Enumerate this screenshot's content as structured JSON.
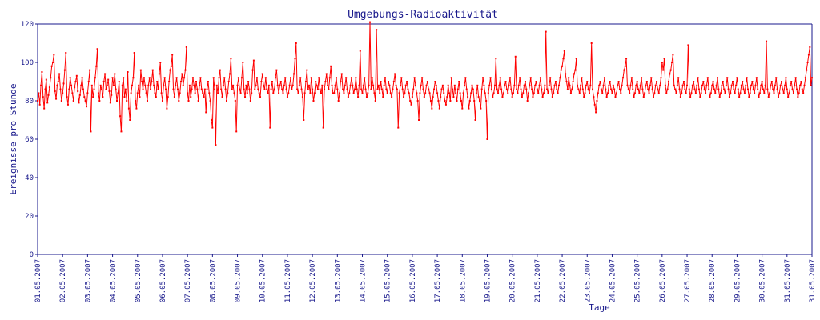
{
  "chart_data": {
    "type": "line",
    "title": "Umgebungs-Radioaktivität",
    "xlabel": "Tage",
    "ylabel": "Ereignisse pro Stunde",
    "ylim": [
      0,
      120
    ],
    "yticks": [
      0,
      20,
      40,
      60,
      80,
      100,
      120
    ],
    "xticks": [
      "01.05.2007",
      "02.05.2007",
      "03.05.2007",
      "04.05.2007",
      "05.05.2007",
      "06.05.2007",
      "07.05.2007",
      "08.05.2007",
      "09.05.2007",
      "10.05.2007",
      "11.05.2007",
      "12.05.2007",
      "13.05.2007",
      "14.05.2007",
      "15.05.2007",
      "16.05.2007",
      "17.05.2007",
      "18.05.2007",
      "19.05.2007",
      "20.05.2007",
      "21.05.2007",
      "22.05.2007",
      "23.05.2007",
      "24.05.2007",
      "25.05.2007",
      "26.05.2007",
      "27.05.2007",
      "28.05.2007",
      "29.05.2007",
      "30.05.2007",
      "31.05.2007",
      "31.05.2007"
    ],
    "grid": false,
    "color": "#ff0000",
    "series": [
      {
        "values": [
          80,
          84,
          78,
          88,
          95,
          82,
          76,
          86,
          91,
          79,
          83,
          87,
          92,
          98,
          100,
          104,
          85,
          81,
          88,
          90,
          94,
          86,
          80,
          84,
          89,
          96,
          105,
          82,
          78,
          86,
          92,
          88,
          84,
          80,
          87,
          90,
          93,
          85,
          79,
          83,
          88,
          92,
          86,
          82,
          80,
          77,
          84,
          90,
          96,
          64,
          88,
          82,
          86,
          92,
          98,
          107,
          84,
          80,
          88,
          86,
          82,
          90,
          94,
          86,
          88,
          91,
          85,
          79,
          83,
          92,
          88,
          94,
          86,
          80,
          84,
          90,
          72,
          64,
          88,
          92,
          82,
          86,
          80,
          95,
          76,
          70,
          84,
          88,
          92,
          105,
          80,
          76,
          84,
          88,
          82,
          96,
          90,
          86,
          92,
          88,
          84,
          80,
          88,
          92,
          86,
          90,
          96,
          88,
          84,
          82,
          90,
          86,
          94,
          100,
          84,
          80,
          88,
          92,
          86,
          76,
          82,
          90,
          96,
          98,
          104,
          86,
          82,
          88,
          92,
          86,
          80,
          84,
          90,
          94,
          88,
          92,
          96,
          108,
          84,
          80,
          88,
          82,
          86,
          92,
          88,
          84,
          90,
          86,
          80,
          88,
          92,
          86,
          84,
          82,
          86,
          74,
          86,
          90,
          84,
          80,
          70,
          66,
          92,
          86,
          57,
          88,
          84,
          92,
          96,
          86,
          82,
          88,
          92,
          86,
          80,
          84,
          90,
          94,
          102,
          86,
          88,
          84,
          80,
          64,
          88,
          92,
          86,
          84,
          92,
          100,
          86,
          82,
          88,
          84,
          90,
          86,
          80,
          84,
          96,
          101,
          86,
          88,
          92,
          86,
          84,
          82,
          90,
          94,
          88,
          86,
          92,
          86,
          84,
          88,
          66,
          86,
          90,
          84,
          86,
          92,
          96,
          88,
          84,
          88,
          90,
          86,
          84,
          88,
          92,
          86,
          82,
          84,
          88,
          92,
          86,
          88,
          94,
          102,
          110,
          86,
          84,
          88,
          92,
          86,
          82,
          70,
          84,
          90,
          96,
          86,
          88,
          84,
          92,
          86,
          80,
          84,
          90,
          88,
          86,
          92,
          86,
          84,
          88,
          66,
          86,
          90,
          94,
          88,
          86,
          92,
          98,
          88,
          84,
          84,
          88,
          92,
          86,
          80,
          84,
          90,
          94,
          86,
          84,
          88,
          92,
          86,
          82,
          84,
          88,
          92,
          88,
          84,
          86,
          92,
          86,
          82,
          88,
          106,
          86,
          84,
          88,
          92,
          86,
          82,
          84,
          88,
          121,
          86,
          92,
          88,
          84,
          80,
          117,
          86,
          88,
          84,
          90,
          86,
          82,
          88,
          92,
          86,
          84,
          90,
          88,
          84,
          82,
          86,
          90,
          94,
          88,
          86,
          66,
          84,
          88,
          92,
          86,
          82,
          84,
          88,
          90,
          86,
          84,
          80,
          78,
          82,
          86,
          92,
          88,
          84,
          80,
          70,
          84,
          88,
          92,
          86,
          82,
          84,
          88,
          90,
          86,
          84,
          80,
          76,
          82,
          86,
          90,
          88,
          84,
          80,
          76,
          82,
          86,
          88,
          84,
          80,
          78,
          82,
          88,
          84,
          80,
          92,
          86,
          82,
          88,
          84,
          80,
          86,
          90,
          84,
          80,
          76,
          84,
          88,
          92,
          86,
          82,
          76,
          80,
          84,
          88,
          86,
          80,
          70,
          84,
          88,
          82,
          80,
          76,
          86,
          92,
          88,
          84,
          80,
          60,
          84,
          88,
          92,
          86,
          82,
          84,
          88,
          102,
          86,
          84,
          88,
          92,
          86,
          82,
          84,
          88,
          90,
          86,
          84,
          88,
          92,
          86,
          82,
          84,
          88,
          103,
          86,
          84,
          88,
          92,
          86,
          82,
          84,
          88,
          90,
          86,
          80,
          84,
          88,
          92,
          86,
          82,
          84,
          88,
          90,
          86,
          84,
          88,
          92,
          86,
          82,
          84,
          88,
          116,
          86,
          84,
          88,
          92,
          86,
          82,
          84,
          88,
          90,
          86,
          84,
          88,
          92,
          96,
          98,
          102,
          106,
          94,
          90,
          86,
          92,
          88,
          84,
          86,
          90,
          94,
          96,
          102,
          88,
          86,
          84,
          88,
          92,
          86,
          82,
          84,
          88,
          90,
          86,
          84,
          88,
          110,
          86,
          82,
          78,
          74,
          80,
          84,
          88,
          90,
          86,
          84,
          88,
          92,
          86,
          82,
          84,
          88,
          90,
          86,
          84,
          88,
          86,
          82,
          84,
          88,
          90,
          86,
          84,
          88,
          92,
          96,
          98,
          102,
          88,
          86,
          84,
          88,
          92,
          86,
          82,
          84,
          88,
          90,
          86,
          84,
          88,
          92,
          86,
          82,
          84,
          88,
          90,
          86,
          84,
          88,
          92,
          86,
          82,
          84,
          88,
          90,
          86,
          84,
          88,
          92,
          100,
          96,
          102,
          88,
          84,
          86,
          90,
          94,
          96,
          100,
          104,
          88,
          86,
          84,
          88,
          92,
          86,
          82,
          84,
          88,
          90,
          86,
          84,
          88,
          109,
          86,
          82,
          84,
          88,
          90,
          86,
          84,
          88,
          92,
          86,
          82,
          84,
          88,
          90,
          86,
          84,
          88,
          92,
          86,
          82,
          84,
          88,
          90,
          86,
          84,
          88,
          92,
          86,
          82,
          84,
          88,
          90,
          86,
          84,
          88,
          92,
          86,
          82,
          84,
          88,
          90,
          86,
          84,
          88,
          92,
          86,
          82,
          84,
          88,
          90,
          86,
          84,
          88,
          92,
          86,
          82,
          84,
          88,
          90,
          86,
          84,
          88,
          92,
          86,
          82,
          84,
          88,
          90,
          86,
          84,
          88,
          111,
          86,
          82,
          84,
          88,
          90,
          86,
          84,
          88,
          92,
          86,
          82,
          84,
          88,
          90,
          86,
          84,
          88,
          92,
          86,
          82,
          84,
          88,
          90,
          86,
          84,
          88,
          92,
          86,
          82,
          84,
          88,
          90,
          86,
          84,
          88,
          92,
          96,
          100,
          104,
          108,
          88,
          92
        ]
      }
    ]
  }
}
